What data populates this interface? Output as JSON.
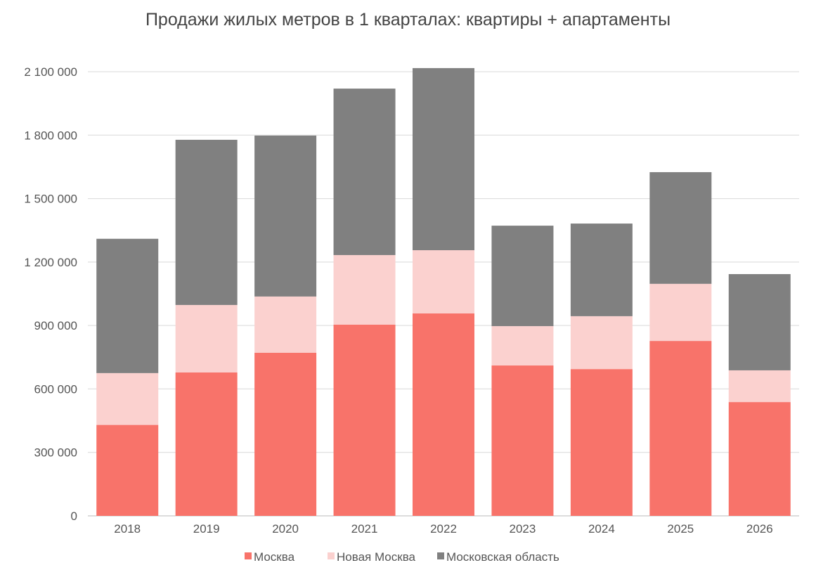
{
  "chart_data": {
    "type": "bar",
    "stacked": true,
    "title": "Продажи жилых метров в 1 кварталах: квартиры + апартаменты",
    "xlabel": "",
    "ylabel": "",
    "categories": [
      "2018",
      "2019",
      "2020",
      "2021",
      "2022",
      "2023",
      "2024",
      "2025",
      "2026"
    ],
    "series": [
      {
        "name": "Москва",
        "color": "#f8736a",
        "values": [
          430000,
          678000,
          771000,
          904000,
          957000,
          711000,
          694000,
          827000,
          538000
        ]
      },
      {
        "name": "Новая Москва",
        "color": "#fbd1cf",
        "values": [
          245000,
          319000,
          266000,
          329000,
          299000,
          186000,
          250000,
          270000,
          150000
        ]
      },
      {
        "name": "Московская область",
        "color": "#808080",
        "values": [
          635000,
          781000,
          761000,
          787000,
          861000,
          475000,
          438000,
          528000,
          455000
        ]
      }
    ],
    "ylim": [
      0,
      2100000
    ],
    "yticks": [
      "0",
      "300 000",
      "600 000",
      "900 000",
      "1 200 000",
      "1 500 000",
      "1 800 000",
      "2 100 000"
    ],
    "grid": true,
    "legend": "bottom"
  }
}
